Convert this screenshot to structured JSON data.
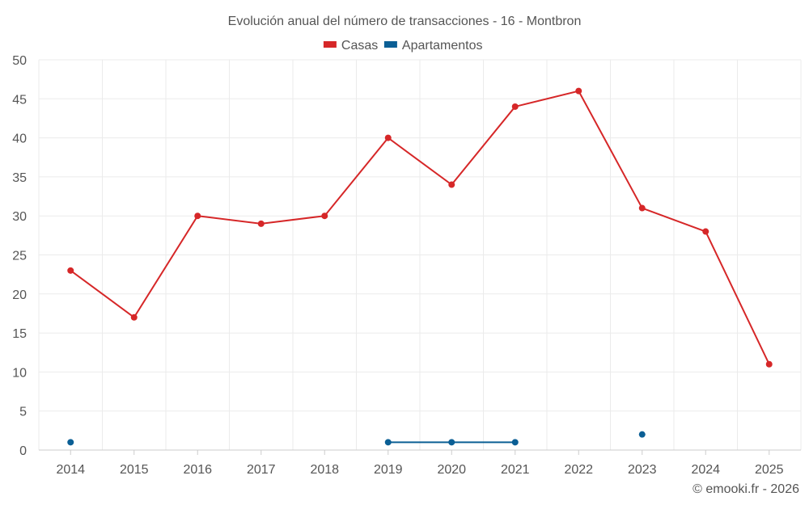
{
  "chart_data": {
    "type": "line",
    "title": "Evolución anual del número de transacciones - 16 - Montbron",
    "categories": [
      "2014",
      "2015",
      "2016",
      "2017",
      "2018",
      "2019",
      "2020",
      "2021",
      "2022",
      "2023",
      "2024",
      "2025"
    ],
    "ylim": [
      0,
      50
    ],
    "yticks": [
      0,
      5,
      10,
      15,
      20,
      25,
      30,
      35,
      40,
      45,
      50
    ],
    "grid": true,
    "legend_position": "top-center",
    "series": [
      {
        "name": "Casas",
        "color": "#d62728",
        "values": [
          23,
          17,
          30,
          29,
          30,
          40,
          34,
          44,
          46,
          31,
          28,
          11
        ]
      },
      {
        "name": "Apartamentos",
        "color": "#0b5f95",
        "values": [
          1,
          null,
          null,
          null,
          null,
          1,
          1,
          1,
          null,
          2,
          null,
          null
        ]
      }
    ]
  },
  "credit": "© emooki.fr - 2026"
}
